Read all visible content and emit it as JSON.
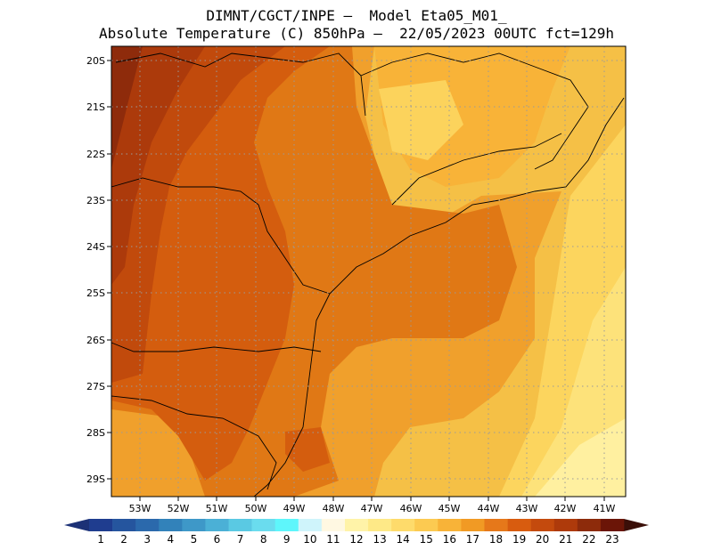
{
  "title": {
    "line1": "DIMNT/CGCT/INPE —  Model Eta05_M01_",
    "line2": "Absolute Temperature (C) 850hPa —  22/05/2023 00UTC fct=129h"
  },
  "map": {
    "lat_labels": [
      "20S",
      "21S",
      "22S",
      "23S",
      "24S",
      "25S",
      "26S",
      "27S",
      "28S",
      "29S"
    ],
    "lon_labels": [
      "53W",
      "52W",
      "51W",
      "50W",
      "49W",
      "48W",
      "47W",
      "46W",
      "45W",
      "44W",
      "43W",
      "42W",
      "41W"
    ],
    "lon_range": [
      -53.8,
      -40.5
    ],
    "lat_range": [
      -29.4,
      -19.8
    ],
    "gridlines": "dotted"
  },
  "colorbar": {
    "labels": [
      "1",
      "2",
      "3",
      "4",
      "5",
      "6",
      "7",
      "8",
      "9",
      "10",
      "11",
      "12",
      "13",
      "14",
      "15",
      "16",
      "17",
      "18",
      "19",
      "20",
      "21",
      "22",
      "23"
    ],
    "colors": [
      "#1f3d8f",
      "#25559e",
      "#2b69ac",
      "#3282ba",
      "#3e98c8",
      "#4bb0d6",
      "#5ac9e3",
      "#6adcee",
      "#5ef6fb",
      "#cff4fb",
      "#fff8e2",
      "#fff3a8",
      "#fee987",
      "#fedb6b",
      "#fcca51",
      "#f8b338",
      "#f19a24",
      "#e6781a",
      "#d85c0f",
      "#c44a0d",
      "#ae3a0b",
      "#8d2b0b",
      "#6b1507"
    ],
    "low_arrow_color": "#1c3176",
    "high_arrow_color": "#3a0f08"
  }
}
